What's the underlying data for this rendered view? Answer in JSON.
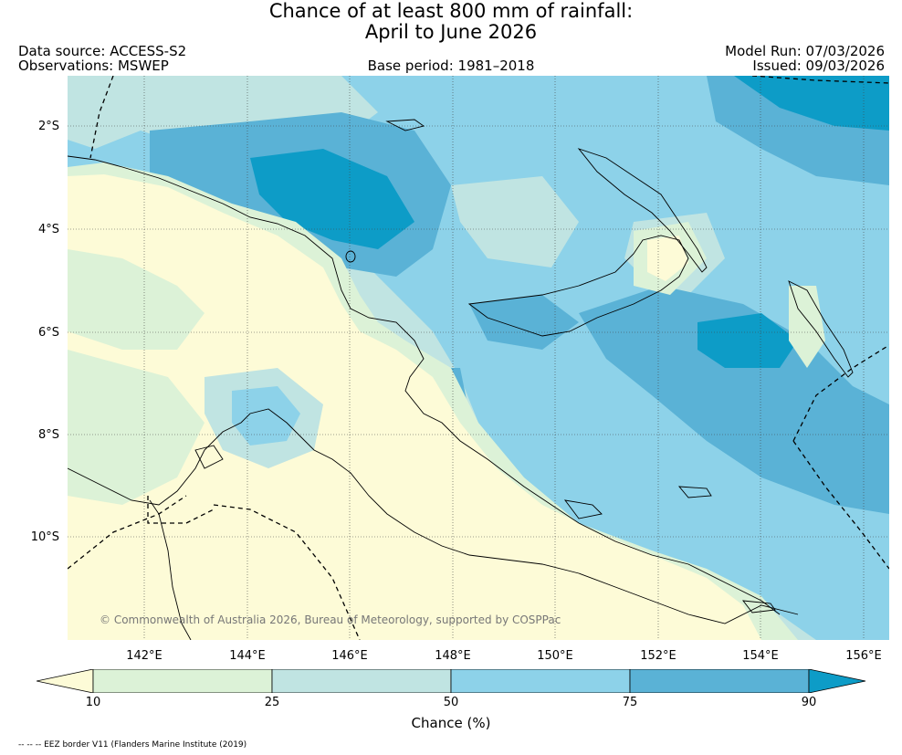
{
  "title": {
    "line1": "Chance of at least 800 mm of rainfall:",
    "line2": "April to June 2026"
  },
  "header": {
    "data_source": "Data source: ACCESS-S2",
    "observations": "Observations: MSWEP",
    "base_period": "Base period: 1981–2018",
    "model_run": "Model Run: 07/03/2026",
    "issued": "Issued: 09/03/2026"
  },
  "map": {
    "latitude_labels": [
      "2°S",
      "4°S",
      "6°S",
      "8°S",
      "10°S"
    ],
    "longitude_labels": [
      "142°E",
      "144°E",
      "146°E",
      "148°E",
      "150°E",
      "152°E",
      "154°E",
      "156°E"
    ],
    "copyright": "© Commonwealth of Australia 2026, Bureau of Meteorology, supported by COSPPac"
  },
  "colorbar": {
    "ticks": [
      "10",
      "25",
      "50",
      "75",
      "90"
    ],
    "label": "Chance (%)",
    "colors": {
      "below_10": "#fdfbd7",
      "10_25": "#dcf2d7",
      "25_50": "#c0e4e2",
      "50_75": "#8dd2e9",
      "75_90": "#5ab2d6",
      "above_90": "#0d9cc7"
    }
  },
  "footer": {
    "eez_note": "-- -- -- EEZ border V11 (Flanders Marine Institute (2019)"
  }
}
